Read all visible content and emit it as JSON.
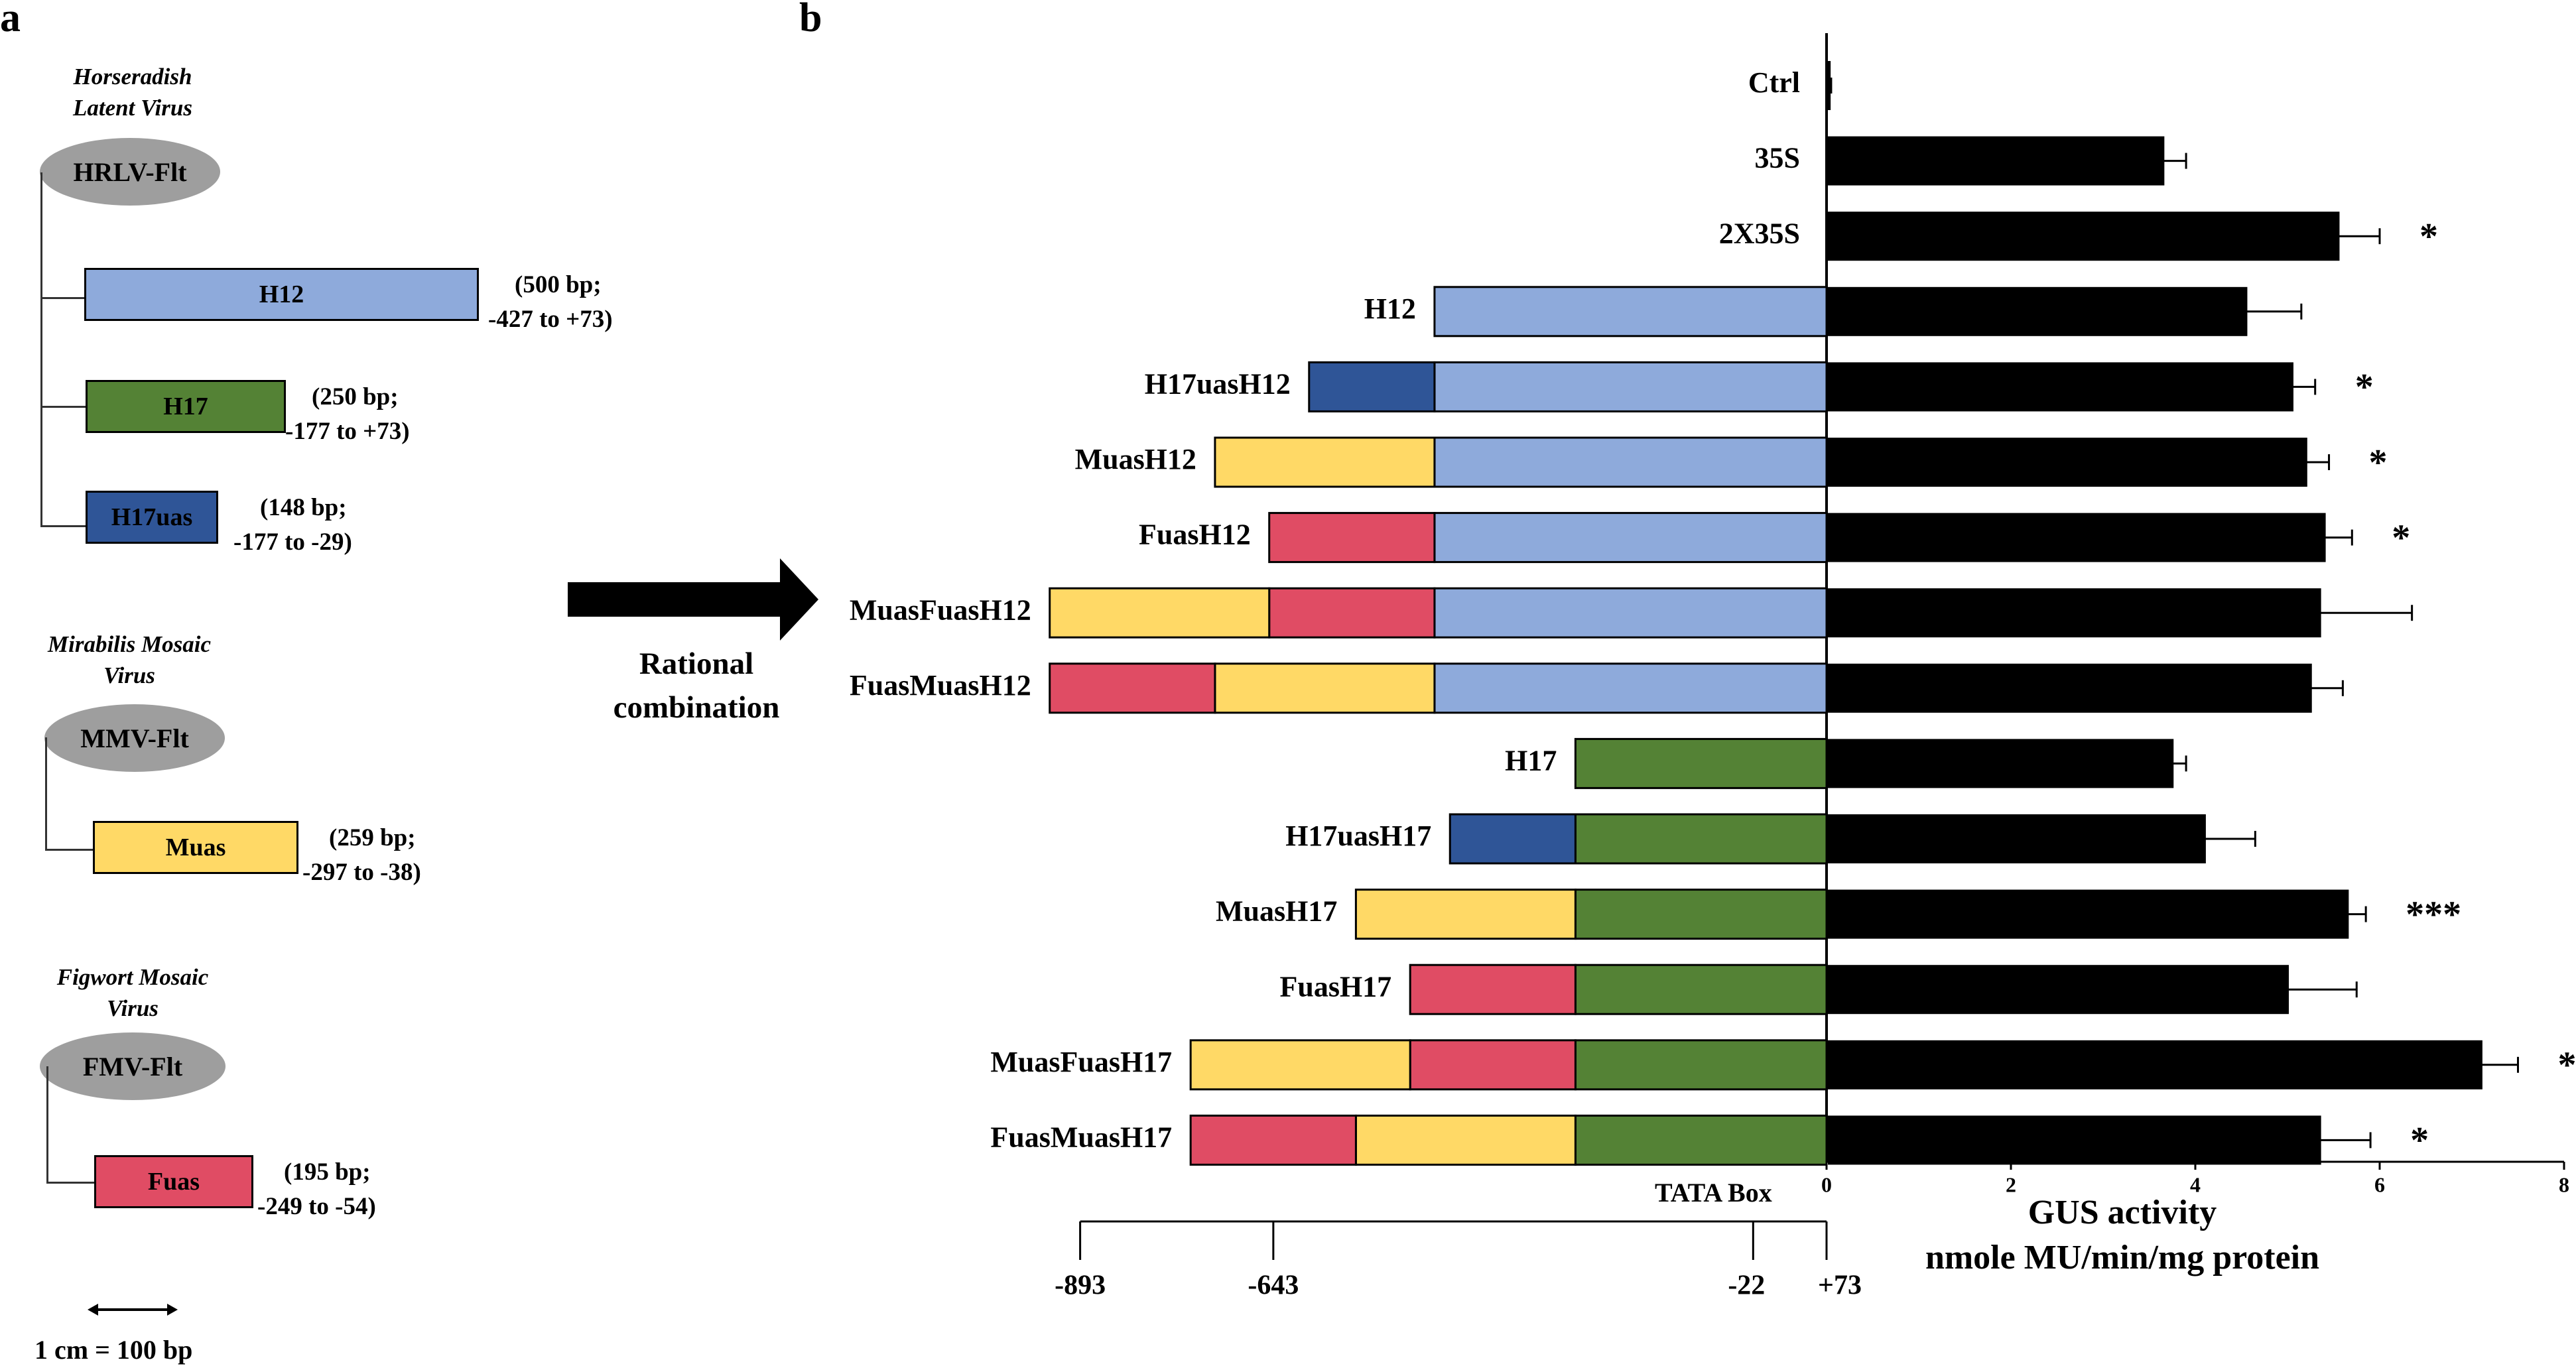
{
  "panel_a": {
    "letter": "a",
    "viruses": [
      {
        "name_line1": "Horseradish",
        "name_line2": "Latent Virus",
        "flt": "HRLV-Flt"
      },
      {
        "name_line1": "Mirabilis Mosaic",
        "name_line2": "Virus",
        "flt": "MMV-Flt"
      },
      {
        "name_line1": "Figwort Mosaic",
        "name_line2": "Virus",
        "flt": "FMV-Flt"
      }
    ],
    "fragments": [
      {
        "label": "H12",
        "bp": "(500 bp;",
        "range": "-427 to +73)",
        "color": "#8eaadb"
      },
      {
        "label": "H17",
        "bp": "(250 bp;",
        "range": "-177 to +73)",
        "color": "#548235"
      },
      {
        "label": "H17uas",
        "bp": "(148 bp;",
        "range": "-177 to -29)",
        "color": "#2f5597"
      },
      {
        "label": "Muas",
        "bp": "(259 bp;",
        "range": "-297 to -38)",
        "color": "#ffd966"
      },
      {
        "label": "Fuas",
        "bp": "(195 bp;",
        "range": "-249 to -54)",
        "color": "#e04c64"
      }
    ],
    "scale_text": "1 cm = 100 bp"
  },
  "arrow": {
    "line1": "Rational",
    "line2": "combination"
  },
  "panel_b": {
    "letter": "b"
  },
  "constructs": [
    {
      "label": "Ctrl",
      "segments": []
    },
    {
      "label": "35S",
      "segments": []
    },
    {
      "label": "2X35S",
      "segments": []
    },
    {
      "label": "H12",
      "segments": [
        "H12"
      ]
    },
    {
      "label": "H17uasH12",
      "segments": [
        "H17uas",
        "H12"
      ]
    },
    {
      "label": "MuasH12",
      "segments": [
        "Muas",
        "H12"
      ]
    },
    {
      "label": "FuasH12",
      "segments": [
        "Fuas",
        "H12"
      ]
    },
    {
      "label": "MuasFuasH12",
      "segments": [
        "Muas",
        "Fuas",
        "H12"
      ]
    },
    {
      "label": "FuasMuasH12",
      "segments": [
        "Fuas",
        "Muas",
        "H12"
      ]
    },
    {
      "label": "H17",
      "segments": [
        "H17"
      ]
    },
    {
      "label": "H17uasH17",
      "segments": [
        "H17uas",
        "H17"
      ]
    },
    {
      "label": "MuasH17",
      "segments": [
        "Muas",
        "H17"
      ]
    },
    {
      "label": "FuasH17",
      "segments": [
        "Fuas",
        "H17"
      ]
    },
    {
      "label": "MuasFuasH17",
      "segments": [
        "Muas",
        "Fuas",
        "H17"
      ]
    },
    {
      "label": "FuasMuasH17",
      "segments": [
        "Fuas",
        "Muas",
        "H17"
      ]
    }
  ],
  "segment_lengths_bp": {
    "H12": 500,
    "H17": 250,
    "H17uas": 148,
    "Muas": 259,
    "Fuas": 195
  },
  "promoter_scale": {
    "title": "TATA Box",
    "ticks": [
      -893,
      -643,
      -22,
      73
    ],
    "tick_labels": [
      "-893",
      "-643",
      "-22",
      "+73"
    ]
  },
  "chart_data": {
    "type": "bar",
    "orientation": "horizontal",
    "categories": [
      "Ctrl",
      "35S",
      "2X35S",
      "H12",
      "H17uasH12",
      "MuasH12",
      "FuasH12",
      "MuasFuasH12",
      "FuasMuasH12",
      "H17",
      "H17uasH17",
      "MuasH17",
      "FuasH17",
      "MuasFuasH17",
      "FuasMuasH17"
    ],
    "values": [
      0.03,
      3.65,
      5.55,
      4.55,
      5.05,
      5.2,
      5.4,
      5.35,
      5.25,
      3.75,
      4.1,
      5.65,
      5.0,
      7.1,
      5.35
    ],
    "errors": [
      0.02,
      0.25,
      0.45,
      0.6,
      0.25,
      0.25,
      0.3,
      1.0,
      0.35,
      0.15,
      0.55,
      0.2,
      0.75,
      0.4,
      0.55
    ],
    "significance": [
      "",
      "",
      "*",
      "",
      "*",
      "*",
      "*",
      "",
      "",
      "",
      "",
      "***",
      "",
      "**",
      "*"
    ],
    "xlabel_line1": "GUS activity",
    "xlabel_line2": "nmole MU/min/mg protein",
    "xlim": [
      0,
      8
    ],
    "xticks": [
      0,
      2,
      4,
      6,
      8
    ],
    "tick_labels": [
      "0",
      "2",
      "4",
      "6",
      "8"
    ],
    "bar_color": "#000000"
  }
}
